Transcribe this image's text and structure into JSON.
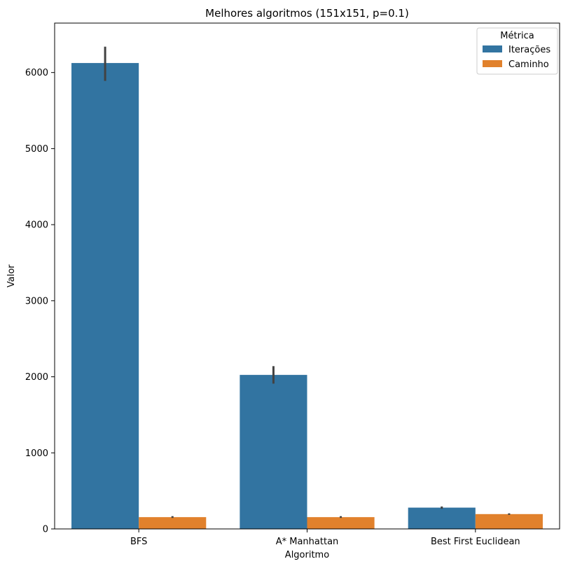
{
  "chart_data": {
    "type": "bar",
    "title": "Melhores algoritmos (151x151, p=0.1)",
    "xlabel": "Algoritmo",
    "ylabel": "Valor",
    "categories": [
      "BFS",
      "A* Manhattan",
      "Best First Euclidean"
    ],
    "ylim": [
      0,
      6650
    ],
    "yticks": [
      0,
      1000,
      2000,
      3000,
      4000,
      5000,
      6000
    ],
    "grid": false,
    "legend": {
      "title": "Métrica",
      "placement": "top-right"
    },
    "series": [
      {
        "name": "Iterações",
        "color": "#3274a1",
        "values": [
          6125,
          2025,
          280
        ],
        "error": [
          [
            5890,
            6340
          ],
          [
            1910,
            2140
          ],
          [
            265,
            295
          ]
        ]
      },
      {
        "name": "Caminho",
        "color": "#e1812c",
        "values": [
          155,
          155,
          195
        ],
        "error": [
          [
            145,
            168
          ],
          [
            145,
            168
          ],
          [
            185,
            205
          ]
        ]
      }
    ]
  }
}
